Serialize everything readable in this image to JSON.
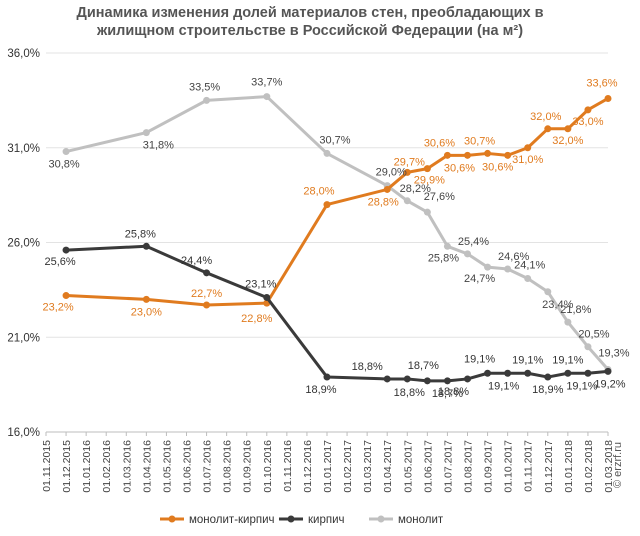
{
  "chart_data": {
    "type": "line",
    "title": [
      "Динамика изменения долей материалов стен, преобладающих в",
      "жилищном  строительстве  в Российской  Федерации (на м²)"
    ],
    "xlabel": "",
    "ylabel": "",
    "ylim": [
      16,
      36
    ],
    "y_ticks": [
      "16,0%",
      "21,0%",
      "26,0%",
      "31,0%",
      "36,0%"
    ],
    "grid": "horizontal",
    "legend_position": "bottom",
    "categories": [
      "01.11.2015",
      "01.12.2015",
      "01.01.2016",
      "01.02.2016",
      "01.03.2016",
      "01.04.2016",
      "01.05.2016",
      "01.06.2016",
      "01.07.2016",
      "01.08.2016",
      "01.09.2016",
      "01.10.2016",
      "01.11.2016",
      "01.12.2016",
      "01.01.2017",
      "01.02.2017",
      "01.03.2017",
      "01.04.2017",
      "01.05.2017",
      "01.06.2017",
      "01.07.2017",
      "01.08.2017",
      "01.09.2017",
      "01.10.2017",
      "01.11.2017",
      "01.12.2017",
      "01.01.2018",
      "01.02.2018",
      "01.03.2018"
    ],
    "series": [
      {
        "name": "монолит-кирпич",
        "color": "#e07b1f",
        "points": [
          {
            "x": "01.12.2015",
            "y": 23.2,
            "label": "23,2%"
          },
          {
            "x": "01.04.2016",
            "y": 23.0,
            "label": "23,0%"
          },
          {
            "x": "01.07.2016",
            "y": 22.7,
            "label": "22,7%"
          },
          {
            "x": "01.10.2016",
            "y": 22.8,
            "label": "22,8%"
          },
          {
            "x": "01.01.2017",
            "y": 28.0,
            "label": "28,0%"
          },
          {
            "x": "01.04.2017",
            "y": 28.8,
            "label": "28,8%"
          },
          {
            "x": "01.05.2017",
            "y": 29.7,
            "label": "29,7%"
          },
          {
            "x": "01.06.2017",
            "y": 29.9,
            "label": "29,9%"
          },
          {
            "x": "01.07.2017",
            "y": 30.6,
            "label": "30,6%"
          },
          {
            "x": "01.08.2017",
            "y": 30.6,
            "label": "30,6%"
          },
          {
            "x": "01.09.2017",
            "y": 30.7,
            "label": "30,7%"
          },
          {
            "x": "01.10.2017",
            "y": 30.6,
            "label": "30,6%"
          },
          {
            "x": "01.11.2017",
            "y": 31.0,
            "label": "31,0%"
          },
          {
            "x": "01.12.2017",
            "y": 32.0,
            "label": "32,0%"
          },
          {
            "x": "01.01.2018",
            "y": 32.0,
            "label": "32,0%"
          },
          {
            "x": "01.02.2018",
            "y": 33.0,
            "label": "33,0%"
          },
          {
            "x": "01.03.2018",
            "y": 33.6,
            "label": "33,6%"
          }
        ]
      },
      {
        "name": "кирпич",
        "color": "#3a3a3a",
        "points": [
          {
            "x": "01.12.2015",
            "y": 25.6,
            "label": "25,6%"
          },
          {
            "x": "01.04.2016",
            "y": 25.8,
            "label": "25,8%"
          },
          {
            "x": "01.07.2016",
            "y": 24.4,
            "label": "24,4%"
          },
          {
            "x": "01.10.2016",
            "y": 23.1,
            "label": "23,1%"
          },
          {
            "x": "01.01.2017",
            "y": 18.9,
            "label": "18,9%"
          },
          {
            "x": "01.04.2017",
            "y": 18.8,
            "label": "18,8%"
          },
          {
            "x": "01.05.2017",
            "y": 18.8,
            "label": "18,8%"
          },
          {
            "x": "01.06.2017",
            "y": 18.7,
            "label": "18,7%"
          },
          {
            "x": "01.07.2017",
            "y": 18.7,
            "label": "18,7%"
          },
          {
            "x": "01.08.2017",
            "y": 18.8,
            "label": "18,8%"
          },
          {
            "x": "01.09.2017",
            "y": 19.1,
            "label": "19,1%"
          },
          {
            "x": "01.10.2017",
            "y": 19.1,
            "label": "19,1%"
          },
          {
            "x": "01.11.2017",
            "y": 19.1,
            "label": "19,1%"
          },
          {
            "x": "01.12.2017",
            "y": 18.9,
            "label": "18,9%"
          },
          {
            "x": "01.01.2018",
            "y": 19.1,
            "label": "19,1%"
          },
          {
            "x": "01.02.2018",
            "y": 19.1,
            "label": "19,1%"
          },
          {
            "x": "01.03.2018",
            "y": 19.2,
            "label": "19,2%"
          }
        ]
      },
      {
        "name": "монолит",
        "color": "#c0c0c0",
        "points": [
          {
            "x": "01.12.2015",
            "y": 30.8,
            "label": "30,8%"
          },
          {
            "x": "01.04.2016",
            "y": 31.8,
            "label": "31,8%"
          },
          {
            "x": "01.07.2016",
            "y": 33.5,
            "label": "33,5%"
          },
          {
            "x": "01.10.2016",
            "y": 33.7,
            "label": "33,7%"
          },
          {
            "x": "01.01.2017",
            "y": 30.7,
            "label": "30,7%"
          },
          {
            "x": "01.04.2017",
            "y": 29.0,
            "label": "29,0%"
          },
          {
            "x": "01.05.2017",
            "y": 28.2,
            "label": "28,2%"
          },
          {
            "x": "01.06.2017",
            "y": 27.6,
            "label": "27,6%"
          },
          {
            "x": "01.07.2017",
            "y": 25.8,
            "label": "25,8%"
          },
          {
            "x": "01.08.2017",
            "y": 25.4,
            "label": "25,4%"
          },
          {
            "x": "01.09.2017",
            "y": 24.7,
            "label": "24,7%"
          },
          {
            "x": "01.10.2017",
            "y": 24.6,
            "label": "24,6%"
          },
          {
            "x": "01.11.2017",
            "y": 24.1,
            "label": "24,1%"
          },
          {
            "x": "01.12.2017",
            "y": 23.4,
            "label": "23,4%"
          },
          {
            "x": "01.01.2018",
            "y": 21.8,
            "label": "21,8%"
          },
          {
            "x": "01.02.2018",
            "y": 20.5,
            "label": "20,5%"
          },
          {
            "x": "01.03.2018",
            "y": 19.3,
            "label": "19,3%"
          }
        ]
      }
    ]
  },
  "watermark": "© erzrf.ru"
}
